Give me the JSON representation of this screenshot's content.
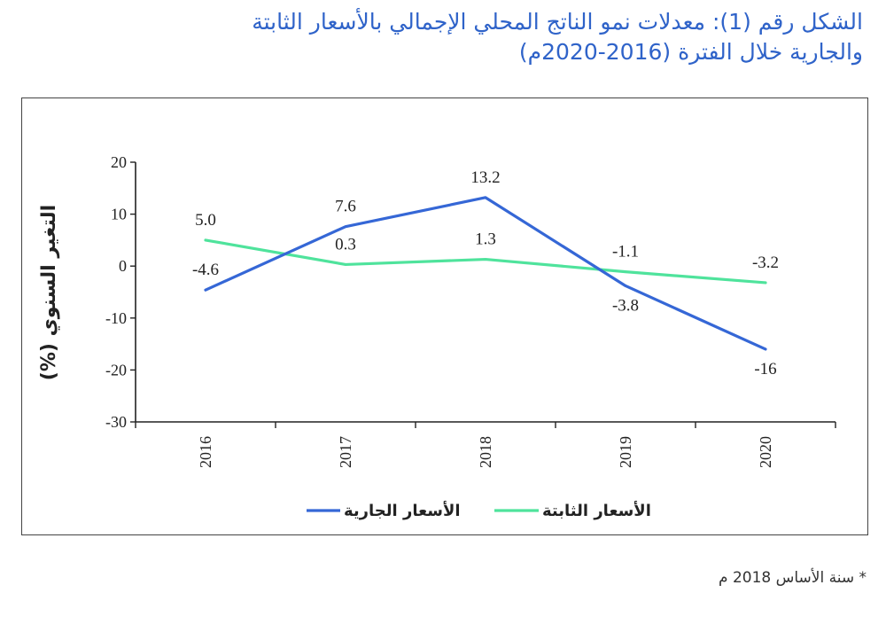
{
  "title": {
    "line1": "الشكل رقم (1): معدلات نمو الناتج المحلي الإجمالي بالأسعار الثابتة",
    "line2": "والجارية خلال الفترة (2016-2020م)"
  },
  "footnote": "* سنة الأساس 2018 م",
  "colors": {
    "current": "#3567d6",
    "constant": "#4fe39c",
    "axis": "#222222"
  },
  "chart_data": {
    "type": "line",
    "title": "معدلات نمو الناتج المحلي الإجمالي بالأسعار الثابتة والجارية خلال الفترة (2016-2020م)",
    "ylabel": "التغير السنوي (%)",
    "xlabel": "",
    "categories": [
      "2016",
      "2017",
      "2018",
      "2019",
      "2020"
    ],
    "ylim": [
      -30,
      20
    ],
    "yticks": [
      20,
      10,
      0,
      -10,
      -20,
      -30
    ],
    "ytick_labels": [
      "20",
      "10",
      "0",
      "-10",
      "-20",
      "-30"
    ],
    "series": [
      {
        "name": "الأسعار الجارية",
        "values": [
          -4.6,
          7.6,
          13.2,
          -3.8,
          -16
        ],
        "labels": [
          "-4.6",
          "7.6",
          "13.2",
          "-3.8",
          "-16"
        ],
        "label_pos": [
          "above",
          "above",
          "above",
          "below",
          "below"
        ]
      },
      {
        "name": "الأسعار الثابتة",
        "values": [
          5.0,
          0.3,
          1.3,
          -1.1,
          -3.2
        ],
        "labels": [
          "5.0",
          "0.3",
          "1.3",
          "-1.1",
          "-3.2"
        ],
        "label_pos": [
          "above",
          "above",
          "above",
          "above",
          "above"
        ]
      }
    ],
    "legend": "bottom-center",
    "grid": false
  }
}
